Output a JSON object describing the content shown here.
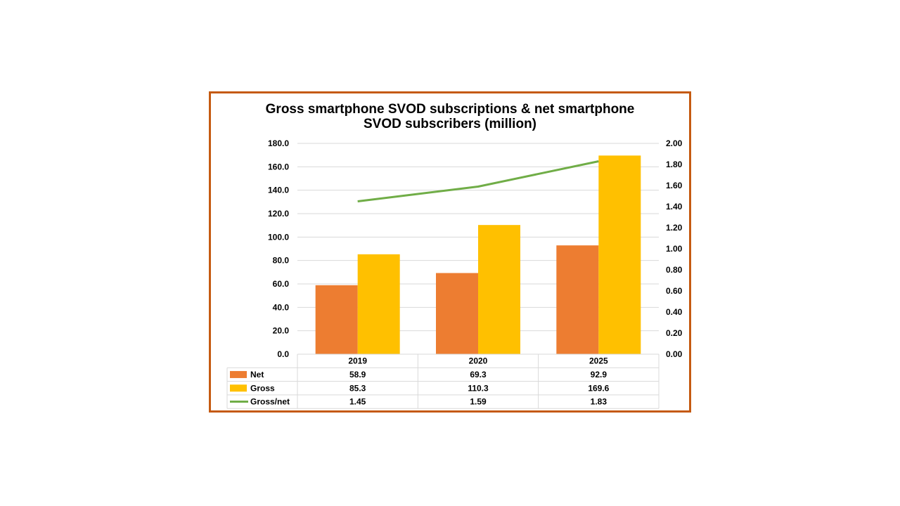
{
  "chart_data": {
    "type": "bar",
    "title_line1": "Gross smartphone SVOD subscriptions & net smartphone",
    "title_line2": "SVOD subscribers (million)",
    "categories": [
      "2019",
      "2020",
      "2025"
    ],
    "series": [
      {
        "name": "Net",
        "type": "bar",
        "axis": "left",
        "color": "#ED7D31",
        "values": [
          58.9,
          69.3,
          92.9
        ],
        "labels": [
          "58.9",
          "69.3",
          "92.9"
        ]
      },
      {
        "name": "Gross",
        "type": "bar",
        "axis": "left",
        "color": "#FFC000",
        "values": [
          85.3,
          110.3,
          169.6
        ],
        "labels": [
          "85.3",
          "110.3",
          "169.6"
        ]
      },
      {
        "name": "Gross/net",
        "type": "line",
        "axis": "right",
        "color": "#70AD47",
        "values": [
          1.45,
          1.59,
          1.83
        ],
        "labels": [
          "1.45",
          "1.59",
          "1.83"
        ]
      }
    ],
    "ylim": [
      0,
      180
    ],
    "y2lim": [
      0,
      2
    ],
    "yticks": [
      "0.0",
      "20.0",
      "40.0",
      "60.0",
      "80.0",
      "100.0",
      "120.0",
      "140.0",
      "160.0",
      "180.0"
    ],
    "y2ticks": [
      "0.00",
      "0.20",
      "0.40",
      "0.60",
      "0.80",
      "1.00",
      "1.20",
      "1.40",
      "1.60",
      "1.80",
      "2.00"
    ],
    "grid": true,
    "legend": "data-table"
  }
}
